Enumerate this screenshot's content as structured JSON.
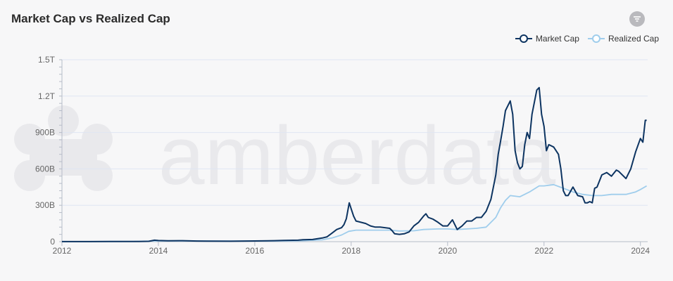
{
  "header": {
    "title": "Market Cap vs Realized Cap"
  },
  "toolbar": {
    "filter_icon": "filter-icon"
  },
  "watermark": {
    "text": "amberdata"
  },
  "colors": {
    "market_cap": "#0d3461",
    "realized_cap": "#9fcdec",
    "grid": "#dfe6f3",
    "axis": "#b6bcc8"
  },
  "chart_data": {
    "type": "line",
    "title": "Market Cap vs Realized Cap",
    "xlabel": "",
    "ylabel": "",
    "x_range": [
      2012,
      2024.15
    ],
    "y_range": [
      0,
      1500000000000
    ],
    "x_ticks": [
      {
        "value": 2012,
        "label": "2012"
      },
      {
        "value": 2014,
        "label": "2014"
      },
      {
        "value": 2016,
        "label": "2016"
      },
      {
        "value": 2018,
        "label": "2018"
      },
      {
        "value": 2020,
        "label": "2020"
      },
      {
        "value": 2022,
        "label": "2022"
      },
      {
        "value": 2024,
        "label": "2024"
      }
    ],
    "y_ticks": [
      {
        "value": 0,
        "label": "0"
      },
      {
        "value": 300000000000,
        "label": "300B"
      },
      {
        "value": 600000000000,
        "label": "600B"
      },
      {
        "value": 900000000000,
        "label": "900B"
      },
      {
        "value": 1200000000000,
        "label": "1.2T"
      },
      {
        "value": 1500000000000,
        "label": "1.5T"
      }
    ],
    "grid": true,
    "legend_position": "top-right",
    "series": [
      {
        "name": "Market Cap",
        "points": [
          [
            2012.0,
            0.0005
          ],
          [
            2012.5,
            0.0007
          ],
          [
            2013.0,
            0.0015
          ],
          [
            2013.3,
            0.002
          ],
          [
            2013.6,
            0.0015
          ],
          [
            2013.8,
            0.003
          ],
          [
            2013.92,
            0.012
          ],
          [
            2014.0,
            0.009
          ],
          [
            2014.2,
            0.007
          ],
          [
            2014.5,
            0.008
          ],
          [
            2014.8,
            0.005
          ],
          [
            2015.0,
            0.004
          ],
          [
            2015.5,
            0.0035
          ],
          [
            2016.0,
            0.006
          ],
          [
            2016.4,
            0.008
          ],
          [
            2016.6,
            0.01
          ],
          [
            2016.9,
            0.012
          ],
          [
            2017.0,
            0.016
          ],
          [
            2017.2,
            0.018
          ],
          [
            2017.4,
            0.03
          ],
          [
            2017.5,
            0.04
          ],
          [
            2017.6,
            0.07
          ],
          [
            2017.7,
            0.1
          ],
          [
            2017.8,
            0.115
          ],
          [
            2017.85,
            0.14
          ],
          [
            2017.9,
            0.19
          ],
          [
            2017.96,
            0.32
          ],
          [
            2018.0,
            0.27
          ],
          [
            2018.05,
            0.21
          ],
          [
            2018.1,
            0.17
          ],
          [
            2018.2,
            0.16
          ],
          [
            2018.3,
            0.15
          ],
          [
            2018.4,
            0.13
          ],
          [
            2018.5,
            0.12
          ],
          [
            2018.6,
            0.12
          ],
          [
            2018.7,
            0.115
          ],
          [
            2018.8,
            0.11
          ],
          [
            2018.85,
            0.09
          ],
          [
            2018.9,
            0.065
          ],
          [
            2019.0,
            0.06
          ],
          [
            2019.1,
            0.065
          ],
          [
            2019.2,
            0.08
          ],
          [
            2019.3,
            0.13
          ],
          [
            2019.4,
            0.16
          ],
          [
            2019.5,
            0.21
          ],
          [
            2019.55,
            0.23
          ],
          [
            2019.6,
            0.2
          ],
          [
            2019.7,
            0.185
          ],
          [
            2019.8,
            0.16
          ],
          [
            2019.9,
            0.13
          ],
          [
            2020.0,
            0.13
          ],
          [
            2020.1,
            0.18
          ],
          [
            2020.2,
            0.1
          ],
          [
            2020.3,
            0.13
          ],
          [
            2020.4,
            0.17
          ],
          [
            2020.5,
            0.17
          ],
          [
            2020.6,
            0.2
          ],
          [
            2020.7,
            0.2
          ],
          [
            2020.8,
            0.25
          ],
          [
            2020.9,
            0.35
          ],
          [
            2021.0,
            0.55
          ],
          [
            2021.05,
            0.72
          ],
          [
            2021.1,
            0.83
          ],
          [
            2021.15,
            0.95
          ],
          [
            2021.2,
            1.08
          ],
          [
            2021.25,
            1.12
          ],
          [
            2021.3,
            1.16
          ],
          [
            2021.35,
            1.05
          ],
          [
            2021.4,
            0.75
          ],
          [
            2021.45,
            0.65
          ],
          [
            2021.5,
            0.6
          ],
          [
            2021.55,
            0.62
          ],
          [
            2021.6,
            0.8
          ],
          [
            2021.65,
            0.9
          ],
          [
            2021.7,
            0.85
          ],
          [
            2021.75,
            1.05
          ],
          [
            2021.8,
            1.15
          ],
          [
            2021.85,
            1.25
          ],
          [
            2021.9,
            1.27
          ],
          [
            2021.95,
            1.05
          ],
          [
            2022.0,
            0.95
          ],
          [
            2022.05,
            0.75
          ],
          [
            2022.1,
            0.8
          ],
          [
            2022.2,
            0.78
          ],
          [
            2022.3,
            0.72
          ],
          [
            2022.35,
            0.6
          ],
          [
            2022.4,
            0.42
          ],
          [
            2022.45,
            0.38
          ],
          [
            2022.5,
            0.38
          ],
          [
            2022.6,
            0.45
          ],
          [
            2022.7,
            0.38
          ],
          [
            2022.8,
            0.37
          ],
          [
            2022.85,
            0.32
          ],
          [
            2022.9,
            0.32
          ],
          [
            2022.95,
            0.33
          ],
          [
            2023.0,
            0.32
          ],
          [
            2023.05,
            0.44
          ],
          [
            2023.1,
            0.45
          ],
          [
            2023.2,
            0.55
          ],
          [
            2023.3,
            0.57
          ],
          [
            2023.4,
            0.54
          ],
          [
            2023.5,
            0.59
          ],
          [
            2023.55,
            0.58
          ],
          [
            2023.6,
            0.56
          ],
          [
            2023.7,
            0.52
          ],
          [
            2023.8,
            0.6
          ],
          [
            2023.9,
            0.74
          ],
          [
            2024.0,
            0.85
          ],
          [
            2024.05,
            0.82
          ],
          [
            2024.1,
            1.0
          ],
          [
            2024.13,
            1.0
          ]
        ]
      },
      {
        "name": "Realized Cap",
        "points": [
          [
            2012.0,
            0.0003
          ],
          [
            2013.0,
            0.001
          ],
          [
            2013.5,
            0.002
          ],
          [
            2013.9,
            0.006
          ],
          [
            2014.5,
            0.006
          ],
          [
            2015.5,
            0.005
          ],
          [
            2016.0,
            0.005
          ],
          [
            2016.5,
            0.006
          ],
          [
            2017.0,
            0.008
          ],
          [
            2017.4,
            0.015
          ],
          [
            2017.6,
            0.03
          ],
          [
            2017.8,
            0.055
          ],
          [
            2017.95,
            0.085
          ],
          [
            2018.1,
            0.095
          ],
          [
            2018.4,
            0.095
          ],
          [
            2018.8,
            0.095
          ],
          [
            2019.0,
            0.088
          ],
          [
            2019.3,
            0.09
          ],
          [
            2019.5,
            0.1
          ],
          [
            2019.8,
            0.105
          ],
          [
            2020.0,
            0.105
          ],
          [
            2020.2,
            0.1
          ],
          [
            2020.4,
            0.105
          ],
          [
            2020.6,
            0.11
          ],
          [
            2020.8,
            0.12
          ],
          [
            2021.0,
            0.2
          ],
          [
            2021.1,
            0.28
          ],
          [
            2021.2,
            0.34
          ],
          [
            2021.3,
            0.38
          ],
          [
            2021.5,
            0.37
          ],
          [
            2021.7,
            0.41
          ],
          [
            2021.9,
            0.46
          ],
          [
            2022.0,
            0.46
          ],
          [
            2022.2,
            0.47
          ],
          [
            2022.4,
            0.44
          ],
          [
            2022.6,
            0.41
          ],
          [
            2022.8,
            0.39
          ],
          [
            2023.0,
            0.38
          ],
          [
            2023.2,
            0.38
          ],
          [
            2023.4,
            0.39
          ],
          [
            2023.7,
            0.39
          ],
          [
            2023.9,
            0.41
          ],
          [
            2024.0,
            0.43
          ],
          [
            2024.13,
            0.46
          ]
        ]
      }
    ]
  }
}
